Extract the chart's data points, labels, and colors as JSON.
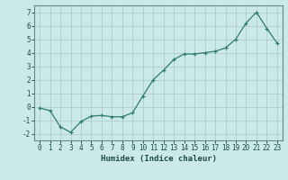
{
  "x": [
    0,
    1,
    2,
    3,
    4,
    5,
    6,
    7,
    8,
    9,
    10,
    11,
    12,
    13,
    14,
    15,
    16,
    17,
    18,
    19,
    20,
    21,
    22,
    23
  ],
  "y": [
    -0.1,
    -0.3,
    -1.5,
    -1.9,
    -1.1,
    -0.7,
    -0.65,
    -0.75,
    -0.75,
    -0.45,
    0.8,
    2.0,
    2.7,
    3.5,
    3.9,
    3.9,
    4.0,
    4.1,
    4.35,
    5.0,
    6.2,
    7.0,
    5.8,
    4.7
  ],
  "xlabel": "Humidex (Indice chaleur)",
  "line_color": "#2e7d6e",
  "marker": "+",
  "marker_size": 3,
  "bg_color": "#cce9e9",
  "grid_color_minor": "#b8d8d8",
  "grid_color_major": "#b0cdcd",
  "ylim": [
    -2.5,
    7.5
  ],
  "xlim": [
    -0.5,
    23.5
  ],
  "yticks": [
    -2,
    -1,
    0,
    1,
    2,
    3,
    4,
    5,
    6,
    7
  ],
  "xticks": [
    0,
    1,
    2,
    3,
    4,
    5,
    6,
    7,
    8,
    9,
    10,
    11,
    12,
    13,
    14,
    15,
    16,
    17,
    18,
    19,
    20,
    21,
    22,
    23
  ],
  "tick_fontsize": 5.5,
  "xlabel_fontsize": 6.5
}
